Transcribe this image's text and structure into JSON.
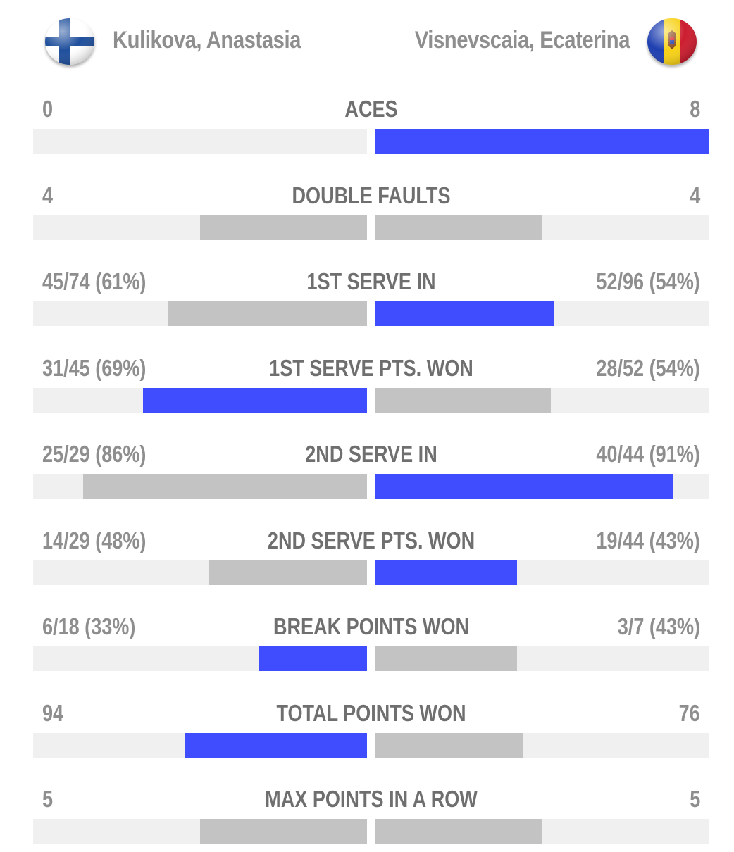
{
  "players": {
    "left": {
      "name": "Kulikova, Anastasia",
      "flag": "finland-flag-icon"
    },
    "right": {
      "name": "Visnevscaia, Ecaterina",
      "flag": "moldova-flag-icon"
    }
  },
  "colors": {
    "winner": "#3f4dff",
    "loser": "#c3c3c3",
    "track": "#f0f0f0",
    "value_text": "#8e8e8e",
    "label_text": "#6f6f6f"
  },
  "stats": [
    {
      "label": "ACES",
      "left": "0",
      "right": "8",
      "left_fill": 0.0,
      "right_fill": 1.0,
      "winner": "right"
    },
    {
      "label": "DOUBLE FAULTS",
      "left": "4",
      "right": "4",
      "left_fill": 0.5,
      "right_fill": 0.5,
      "winner": "none"
    },
    {
      "label": "1ST SERVE IN",
      "left": "45/74 (61%)",
      "right": "52/96 (54%)",
      "left_fill": 0.595,
      "right_fill": 0.535,
      "winner": "right"
    },
    {
      "label": "1ST SERVE PTS. WON",
      "left": "31/45 (69%)",
      "right": "28/52 (54%)",
      "left_fill": 0.67,
      "right_fill": 0.525,
      "winner": "left"
    },
    {
      "label": "2ND SERVE IN",
      "left": "25/29 (86%)",
      "right": "40/44 (91%)",
      "left_fill": 0.85,
      "right_fill": 0.89,
      "winner": "right"
    },
    {
      "label": "2ND SERVE PTS. WON",
      "left": "14/29 (48%)",
      "right": "19/44 (43%)",
      "left_fill": 0.475,
      "right_fill": 0.425,
      "winner": "right"
    },
    {
      "label": "BREAK POINTS WON",
      "left": "6/18 (33%)",
      "right": "3/7 (43%)",
      "left_fill": 0.325,
      "right_fill": 0.425,
      "winner": "left"
    },
    {
      "label": "TOTAL POINTS WON",
      "left": "94",
      "right": "76",
      "left_fill": 0.547,
      "right_fill": 0.442,
      "winner": "left"
    },
    {
      "label": "MAX POINTS IN A ROW",
      "left": "5",
      "right": "5",
      "left_fill": 0.5,
      "right_fill": 0.5,
      "winner": "none"
    }
  ]
}
